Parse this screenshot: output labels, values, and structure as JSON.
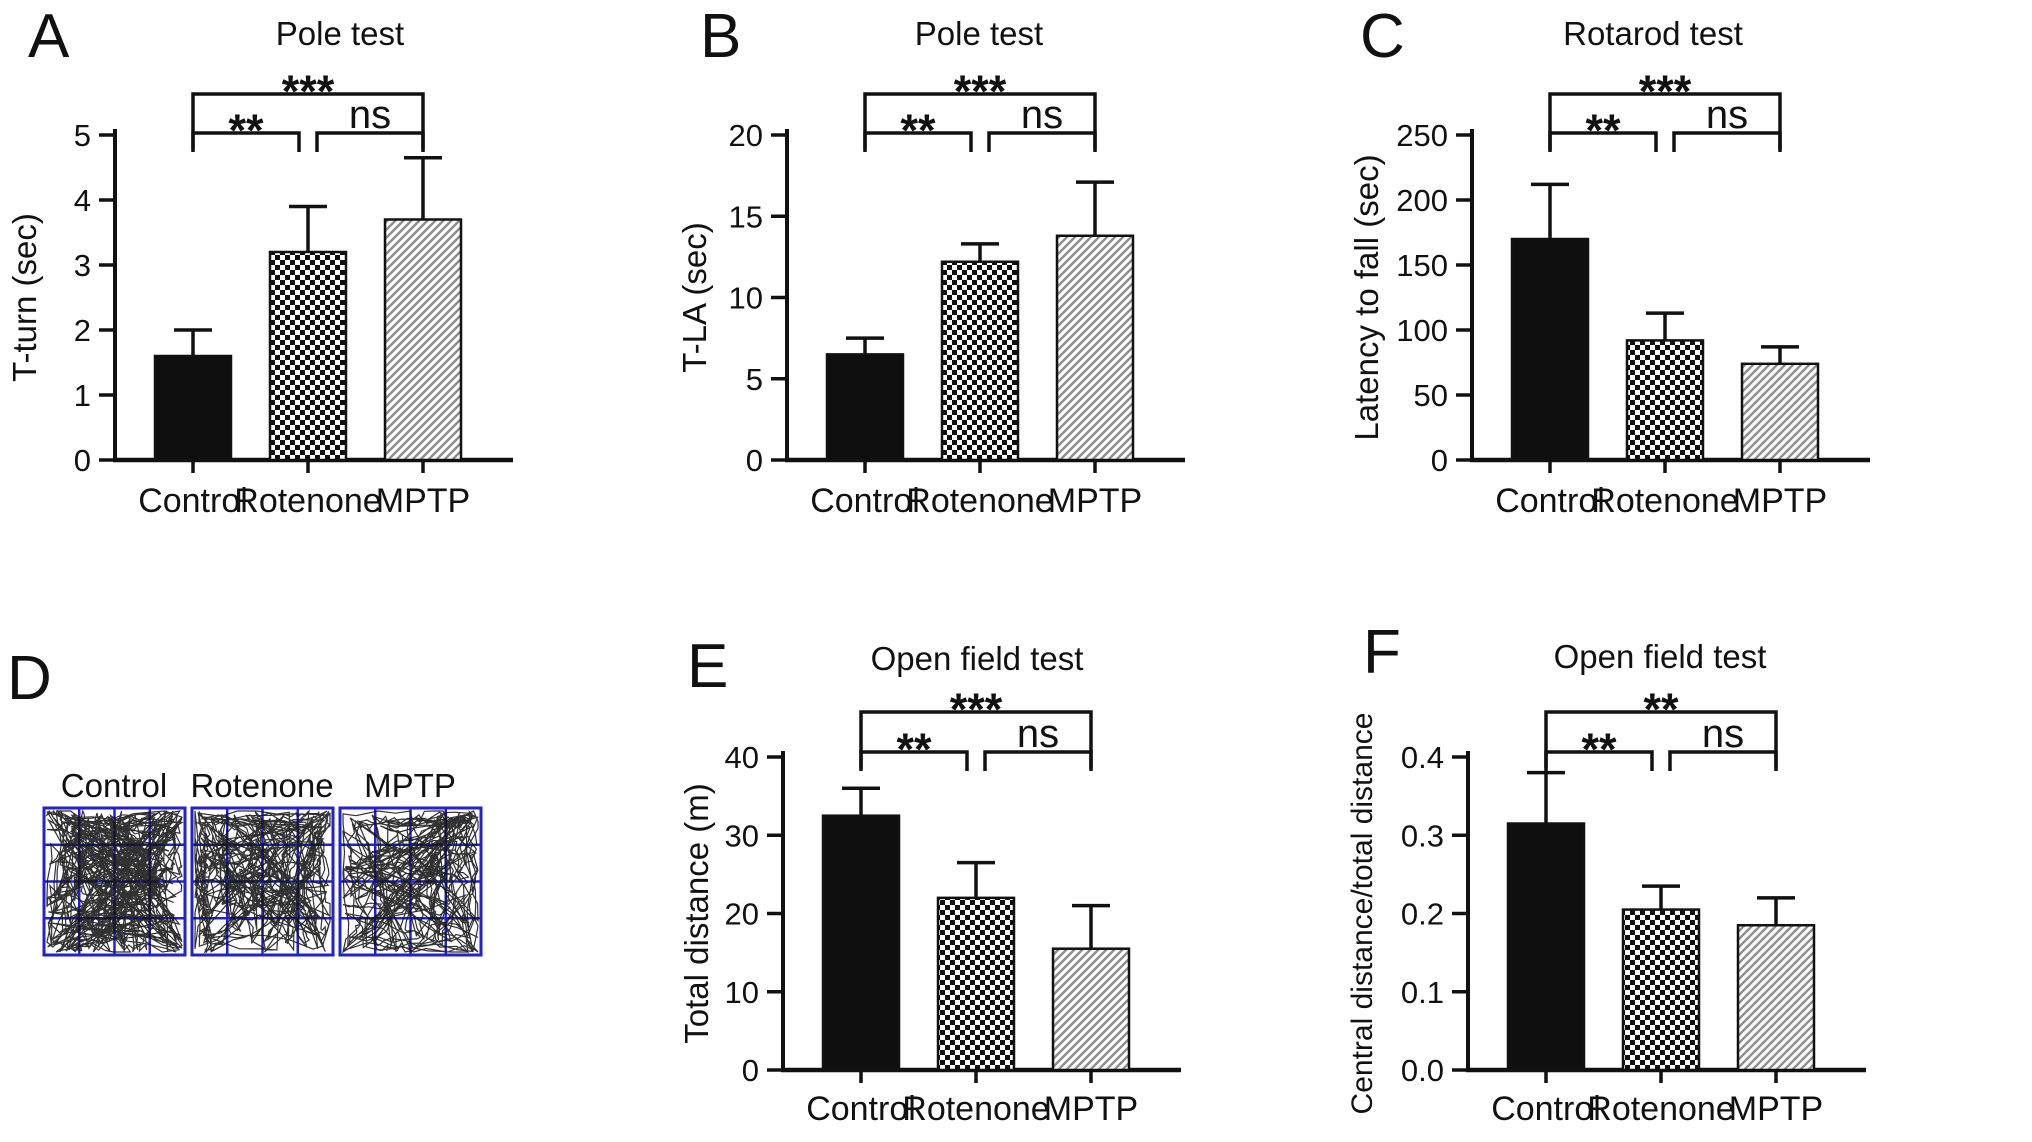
{
  "colors": {
    "ink_black": "#111111",
    "bar_black": "#0f0f0f",
    "hatch_gray": "#8e8e8e",
    "significance_gray": "#4d4d4d",
    "grid_blue": "#2222cd",
    "trace_black": "#151515"
  },
  "chart_data": [
    {
      "id": "A",
      "panel_letter": "A",
      "type": "bar",
      "title": "Pole test",
      "ylabel": "T-turn (sec)",
      "xlabel": "",
      "categories": [
        "Control",
        "Rotenone",
        "MPTP"
      ],
      "values": [
        1.6,
        3.2,
        3.7
      ],
      "errors_plus": [
        0.4,
        0.7,
        0.95
      ],
      "ylim": [
        0,
        5
      ],
      "yticks": [
        0,
        1,
        2,
        3,
        4,
        5
      ],
      "ytick_labels": [
        "0",
        "1",
        "2",
        "3",
        "4",
        "5"
      ],
      "bar_styles": [
        "solid-black",
        "checkerboard",
        "diagonal-hatch"
      ],
      "grid": false,
      "legend": "none",
      "significance": [
        {
          "pair": [
            "Control",
            "Rotenone"
          ],
          "label": "**"
        },
        {
          "pair": [
            "Rotenone",
            "MPTP"
          ],
          "label": "ns"
        },
        {
          "pair": [
            "Control",
            "MPTP"
          ],
          "label": "***"
        }
      ]
    },
    {
      "id": "B",
      "panel_letter": "B",
      "type": "bar",
      "title": "Pole test",
      "ylabel": "T-LA (sec)",
      "xlabel": "",
      "categories": [
        "Control",
        "Rotenone",
        "MPTP"
      ],
      "values": [
        6.5,
        12.2,
        13.8
      ],
      "errors_plus": [
        1.0,
        1.1,
        3.3
      ],
      "ylim": [
        0,
        20
      ],
      "yticks": [
        0,
        5,
        10,
        15,
        20
      ],
      "ytick_labels": [
        "0",
        "5",
        "10",
        "15",
        "20"
      ],
      "bar_styles": [
        "solid-black",
        "checkerboard",
        "diagonal-hatch"
      ],
      "grid": false,
      "legend": "none",
      "significance": [
        {
          "pair": [
            "Control",
            "Rotenone"
          ],
          "label": "**"
        },
        {
          "pair": [
            "Rotenone",
            "MPTP"
          ],
          "label": "ns"
        },
        {
          "pair": [
            "Control",
            "MPTP"
          ],
          "label": "***"
        }
      ]
    },
    {
      "id": "C",
      "panel_letter": "C",
      "type": "bar",
      "title": "Rotarod test",
      "ylabel": "Latency to fall (sec)",
      "xlabel": "",
      "categories": [
        "Control",
        "Rotenone",
        "MPTP"
      ],
      "values": [
        170,
        92,
        74
      ],
      "errors_plus": [
        42,
        21,
        13
      ],
      "ylim": [
        0,
        250
      ],
      "yticks": [
        0,
        50,
        100,
        150,
        200,
        250
      ],
      "ytick_labels": [
        "0",
        "50",
        "100",
        "150",
        "200",
        "250"
      ],
      "bar_styles": [
        "solid-black",
        "checkerboard",
        "diagonal-hatch"
      ],
      "grid": false,
      "legend": "none",
      "significance": [
        {
          "pair": [
            "Control",
            "Rotenone"
          ],
          "label": "**"
        },
        {
          "pair": [
            "Rotenone",
            "MPTP"
          ],
          "label": "ns"
        },
        {
          "pair": [
            "Control",
            "MPTP"
          ],
          "label": "***"
        }
      ]
    },
    {
      "id": "D",
      "panel_letter": "D",
      "type": "track-plot",
      "groups": [
        {
          "label": "Control"
        },
        {
          "label": "Rotenone"
        },
        {
          "label": "MPTP"
        }
      ],
      "grid_divisions": 4
    },
    {
      "id": "E",
      "panel_letter": "E",
      "type": "bar",
      "title": "Open field test",
      "ylabel": "Total distance (m)",
      "xlabel": "",
      "categories": [
        "Control",
        "Rotenone",
        "MPTP"
      ],
      "values": [
        32.5,
        22,
        15.5
      ],
      "errors_plus": [
        3.5,
        4.5,
        5.5
      ],
      "ylim": [
        0,
        40
      ],
      "yticks": [
        0,
        10,
        20,
        30,
        40
      ],
      "ytick_labels": [
        "0",
        "10",
        "20",
        "30",
        "40"
      ],
      "bar_styles": [
        "solid-black",
        "checkerboard",
        "diagonal-hatch"
      ],
      "grid": false,
      "legend": "none",
      "significance": [
        {
          "pair": [
            "Control",
            "Rotenone"
          ],
          "label": "**"
        },
        {
          "pair": [
            "Rotenone",
            "MPTP"
          ],
          "label": "ns"
        },
        {
          "pair": [
            "Control",
            "MPTP"
          ],
          "label": "***"
        }
      ]
    },
    {
      "id": "F",
      "panel_letter": "F",
      "type": "bar",
      "title": "Open field test",
      "ylabel": "Central distance/total distance",
      "xlabel": "",
      "categories": [
        "Control",
        "Rotenone",
        "MPTP"
      ],
      "values": [
        0.315,
        0.205,
        0.185
      ],
      "errors_plus": [
        0.065,
        0.03,
        0.035
      ],
      "ylim": [
        0,
        0.4
      ],
      "yticks": [
        0,
        0.1,
        0.2,
        0.3,
        0.4
      ],
      "ytick_labels": [
        "0.0",
        "0.1",
        "0.2",
        "0.3",
        "0.4"
      ],
      "bar_styles": [
        "solid-black",
        "checkerboard",
        "diagonal-hatch"
      ],
      "grid": false,
      "legend": "none",
      "significance": [
        {
          "pair": [
            "Control",
            "Rotenone"
          ],
          "label": "**"
        },
        {
          "pair": [
            "Rotenone",
            "MPTP"
          ],
          "label": "ns"
        },
        {
          "pair": [
            "Control",
            "MPTP"
          ],
          "label": "**"
        }
      ]
    }
  ]
}
